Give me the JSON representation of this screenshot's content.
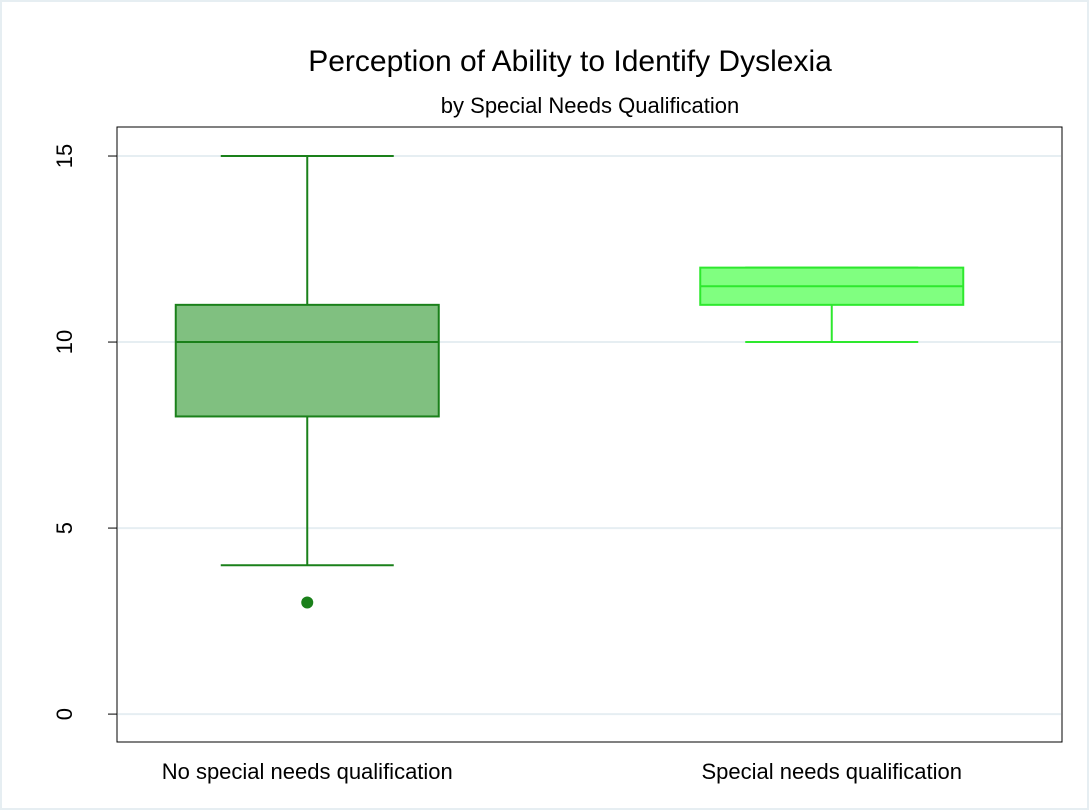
{
  "chart_data": {
    "type": "box",
    "title": "Perception of Ability to Identify Dyslexia",
    "subtitle": "by Special Needs Qualification",
    "categories": [
      "No special needs qualification",
      "Special needs qualification"
    ],
    "boxes": [
      {
        "min": 4,
        "q1": 8,
        "median": 10,
        "q3": 11,
        "max": 15,
        "outliers": [
          3
        ],
        "color": "#1a801a",
        "fill": "#80c080"
      },
      {
        "min": 10,
        "q1": 11,
        "median": 11.5,
        "q3": 12,
        "max": 12,
        "outliers": [],
        "color": "#2ee82e",
        "fill": "#80ff80"
      }
    ],
    "ylim": [
      -0.75,
      15.78
    ],
    "yticks": [
      0,
      5,
      10,
      15
    ],
    "grid": true
  }
}
